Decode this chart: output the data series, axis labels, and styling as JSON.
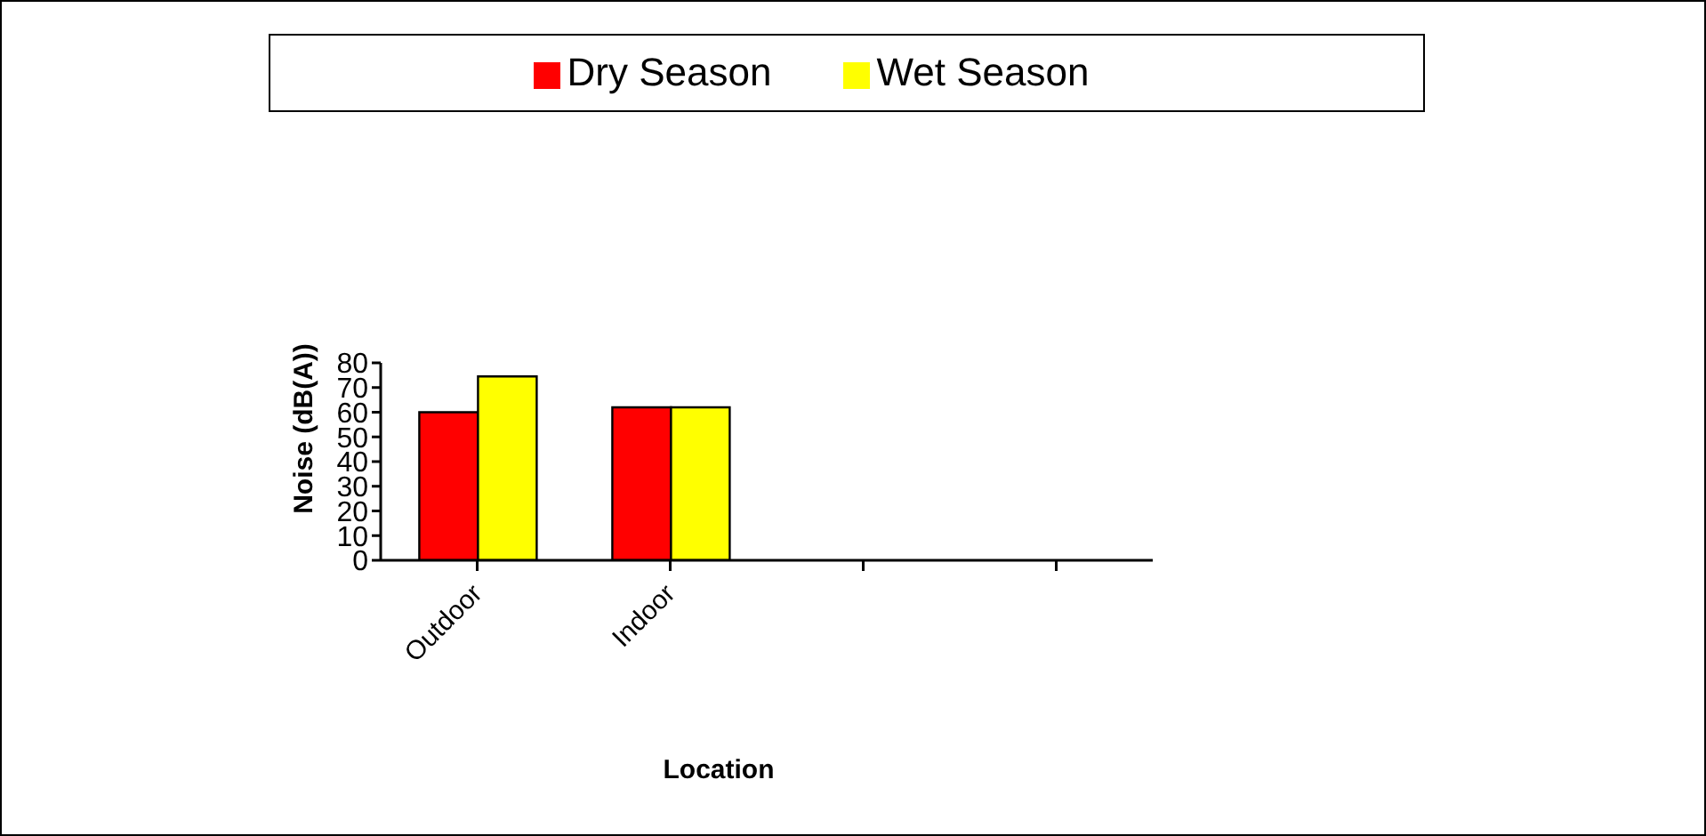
{
  "chart_data": {
    "type": "bar",
    "xlabel": "Location",
    "ylabel": "Noise (dB(A))",
    "categories": [
      "Outdoor",
      "Indoor",
      null,
      null
    ],
    "series": [
      {
        "name": "Dry Season",
        "color": "#ff0000",
        "values": [
          60,
          62,
          null,
          null
        ]
      },
      {
        "name": "Wet Season",
        "color": "#ffff00",
        "values": [
          74.5,
          62,
          null,
          null
        ]
      }
    ],
    "ylim": [
      0,
      80
    ],
    "yticks": [
      0,
      10,
      20,
      30,
      40,
      50,
      60,
      70,
      80
    ],
    "grid": false,
    "legend": "top"
  }
}
